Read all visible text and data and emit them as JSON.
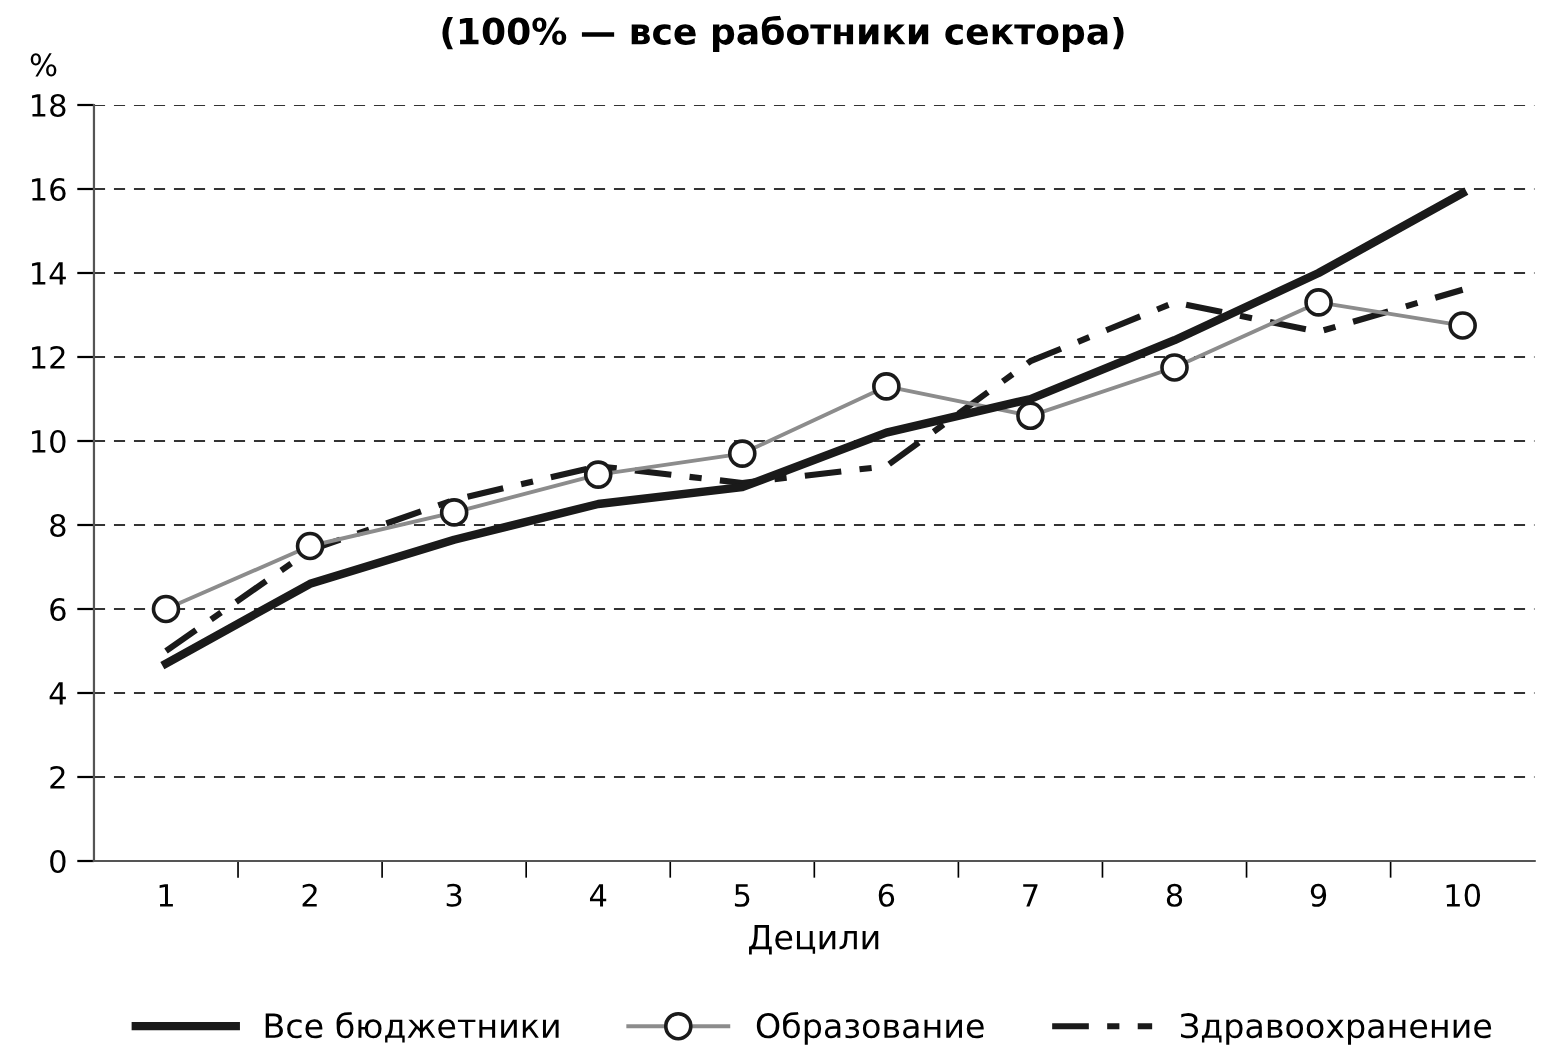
{
  "chart_data": {
    "type": "line",
    "title": "(100% — все работники сектора)",
    "xlabel": "Децили",
    "ylabel": "%",
    "categories": [
      "1",
      "2",
      "3",
      "4",
      "5",
      "6",
      "7",
      "8",
      "9",
      "10"
    ],
    "series": [
      {
        "name": "Все бюджетники",
        "color": "#1a1a1a",
        "line_style": "solid",
        "marker": "none",
        "values": [
          4.7,
          6.6,
          7.65,
          8.5,
          8.9,
          10.2,
          11.0,
          12.4,
          14.0,
          15.9
        ]
      },
      {
        "name": "Образование",
        "color": "#8c8c8c",
        "line_style": "solid",
        "marker": "circle",
        "values": [
          6.0,
          7.5,
          8.3,
          9.2,
          9.7,
          11.3,
          10.6,
          11.75,
          13.3,
          12.75
        ]
      },
      {
        "name": "Здравоохранение",
        "color": "#1a1a1a",
        "line_style": "dashed",
        "marker": "none",
        "values": [
          5.0,
          7.4,
          8.6,
          9.4,
          9.0,
          9.4,
          11.9,
          13.3,
          12.6,
          13.6
        ]
      }
    ],
    "ylim": [
      0,
      18
    ],
    "yticks": [
      0,
      2,
      4,
      6,
      8,
      10,
      12,
      14,
      16,
      18
    ],
    "grid": "y",
    "legend": "bottom"
  }
}
